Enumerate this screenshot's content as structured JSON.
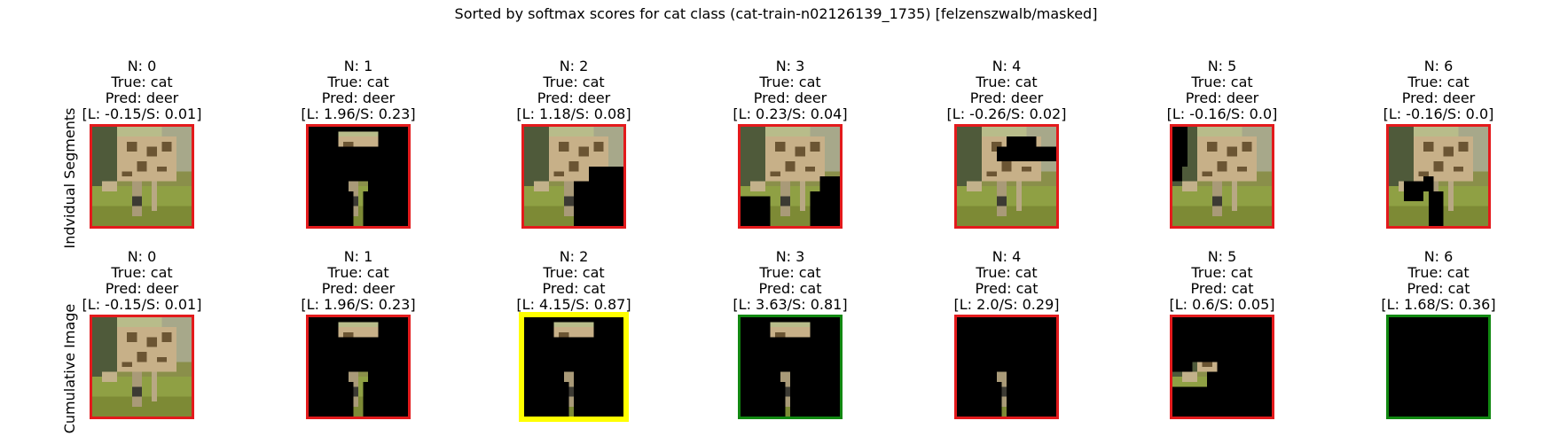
{
  "chart_data": {
    "type": "image-grid",
    "title": "Sorted by softmax scores for cat class (cat-train-n02126139_1735) [felzenszwalb/masked]",
    "row_labels": [
      "Indvidual Segments",
      "Cumulative Image"
    ],
    "colors": {
      "red": "#e31a1c",
      "yellow": "#ffff00",
      "green": "#118811",
      "mask": "#000000"
    },
    "rows": [
      {
        "name": "Indvidual Segments",
        "cells": [
          {
            "n": "N: 0",
            "true": "True: cat",
            "pred": "Pred: deer",
            "score": "[L: -0.15/S: 0.01]",
            "frame": "red",
            "mask": "none"
          },
          {
            "n": "N: 1",
            "true": "True: cat",
            "pred": "Pred: deer",
            "score": "[L: 1.96/S: 0.23]",
            "frame": "red",
            "mask": "ind1"
          },
          {
            "n": "N: 2",
            "true": "True: cat",
            "pred": "Pred: deer",
            "score": "[L: 1.18/S: 0.08]",
            "frame": "red",
            "mask": "ind2"
          },
          {
            "n": "N: 3",
            "true": "True: cat",
            "pred": "Pred: deer",
            "score": "[L: 0.23/S: 0.04]",
            "frame": "red",
            "mask": "ind3"
          },
          {
            "n": "N: 4",
            "true": "True: cat",
            "pred": "Pred: deer",
            "score": "[L: -0.26/S: 0.02]",
            "frame": "red",
            "mask": "ind4"
          },
          {
            "n": "N: 5",
            "true": "True: cat",
            "pred": "Pred: deer",
            "score": "[L: -0.16/S: 0.0]",
            "frame": "red",
            "mask": "ind5"
          },
          {
            "n": "N: 6",
            "true": "True: cat",
            "pred": "Pred: deer",
            "score": "[L: -0.16/S: 0.0]",
            "frame": "red",
            "mask": "ind6"
          }
        ]
      },
      {
        "name": "Cumulative Image",
        "cells": [
          {
            "n": "N: 0",
            "true": "True: cat",
            "pred": "Pred: deer",
            "score": "[L: -0.15/S: 0.01]",
            "frame": "red",
            "mask": "none"
          },
          {
            "n": "N: 1",
            "true": "True: cat",
            "pred": "Pred: deer",
            "score": "[L: 1.96/S: 0.23]",
            "frame": "red",
            "mask": "cum1"
          },
          {
            "n": "N: 2",
            "true": "True: cat",
            "pred": "Pred: cat",
            "score": "[L: 4.15/S: 0.87]",
            "frame": "yellow",
            "mask": "cum2"
          },
          {
            "n": "N: 3",
            "true": "True: cat",
            "pred": "Pred: cat",
            "score": "[L: 3.63/S: 0.81]",
            "frame": "green",
            "mask": "cum3"
          },
          {
            "n": "N: 4",
            "true": "True: cat",
            "pred": "Pred: cat",
            "score": "[L: 2.0/S: 0.29]",
            "frame": "red",
            "mask": "cum4"
          },
          {
            "n": "N: 5",
            "true": "True: cat",
            "pred": "Pred: cat",
            "score": "[L: 0.6/S: 0.05]",
            "frame": "red",
            "mask": "cum5"
          },
          {
            "n": "N: 6",
            "true": "True: cat",
            "pred": "Pred: cat",
            "score": "[L: 1.68/S: 0.36]",
            "frame": "green",
            "mask": "full"
          }
        ]
      }
    ]
  }
}
